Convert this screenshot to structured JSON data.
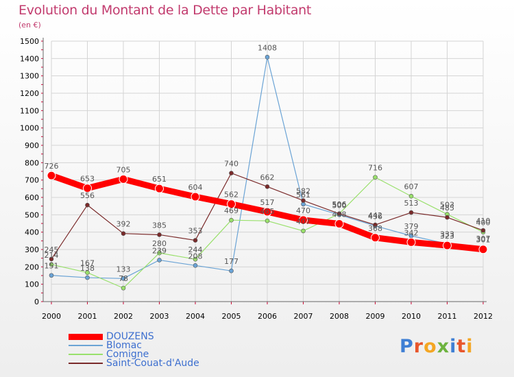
{
  "chart_data": {
    "type": "line",
    "title": "Evolution du Montant de la Dette par Habitant",
    "subtitle": "(en €)",
    "categories": [
      "2000",
      "2001",
      "2002",
      "2003",
      "2004",
      "2005",
      "2006",
      "2007",
      "2008",
      "2009",
      "2010",
      "2011",
      "2012"
    ],
    "ylim": [
      0,
      1500
    ],
    "yticks": [
      0,
      100,
      200,
      300,
      400,
      500,
      600,
      700,
      800,
      900,
      1000,
      1100,
      1200,
      1300,
      1400,
      1500
    ],
    "grid": true,
    "legend_position": "bottom-left",
    "series": [
      {
        "name": "DOUZENS",
        "color": "#ff0000",
        "values": [
          726,
          653,
          705,
          651,
          604,
          562,
          517,
          470,
          448,
          368,
          342,
          323,
          301
        ]
      },
      {
        "name": "Blomac",
        "color": "#6aa3d5",
        "values": [
          151,
          138,
          133,
          239,
          208,
          177,
          1408,
          561,
          500,
          436,
          379,
          333,
          307
        ]
      },
      {
        "name": "Comigne",
        "color": "#99e06b",
        "values": [
          214,
          167,
          78,
          280,
          244,
          469,
          465,
          407,
          506,
          716,
          607,
          503,
          400
        ]
      },
      {
        "name": "Saint-Couat-d'Aude",
        "color": "#7a2a2a",
        "values": [
          245,
          556,
          392,
          385,
          353,
          740,
          662,
          582,
          506,
          442,
          513,
          485,
          410
        ]
      }
    ]
  },
  "logo": {
    "letters": [
      {
        "ch": "P",
        "color": "#3f7fd4"
      },
      {
        "ch": "r",
        "color": "#e8562c"
      },
      {
        "ch": "o",
        "color": "#f4a623"
      },
      {
        "ch": "x",
        "color": "#6db33f"
      },
      {
        "ch": "i",
        "color": "#3f7fd4"
      },
      {
        "ch": "t",
        "color": "#e8562c"
      },
      {
        "ch": "i",
        "color": "#f4a623"
      }
    ]
  }
}
